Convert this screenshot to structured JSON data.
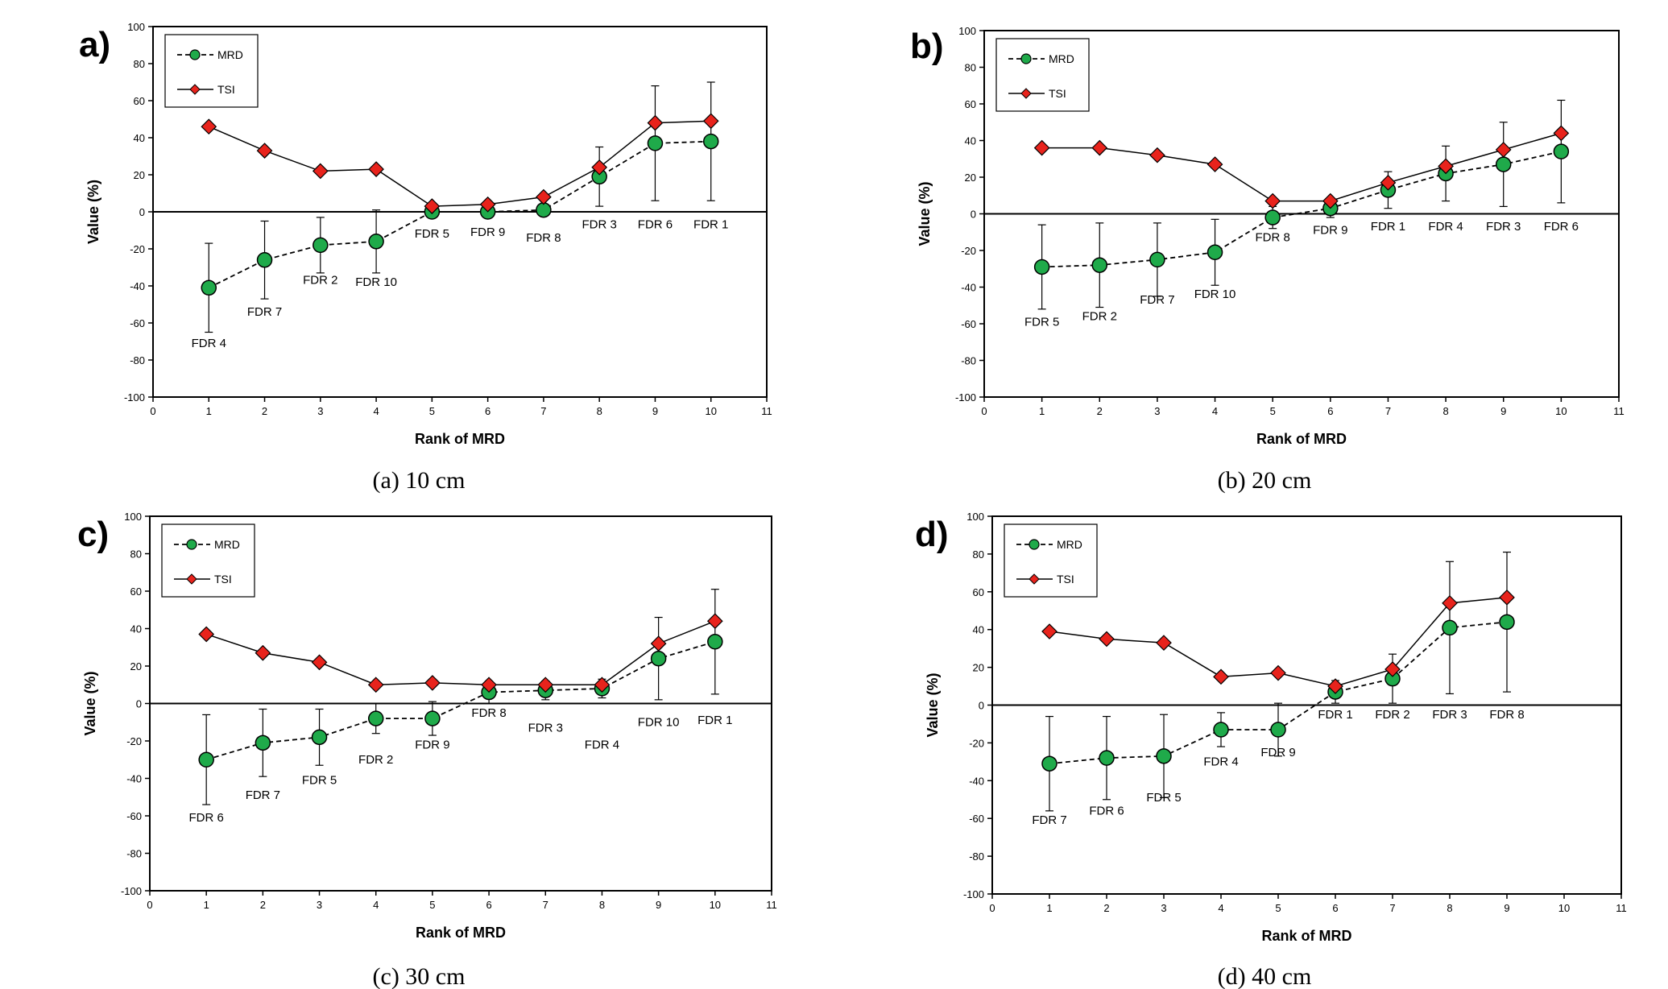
{
  "chart_data": [
    {
      "type": "line",
      "panel_label": "a)",
      "caption": "(a) 10 cm",
      "xlabel": "Rank of MRD",
      "ylabel": "Value (%)",
      "xlim": [
        0,
        11
      ],
      "ylim": [
        -100,
        100
      ],
      "xticks": [
        0,
        1,
        2,
        3,
        4,
        5,
        6,
        7,
        8,
        9,
        10,
        11
      ],
      "yticks": [
        -100,
        -80,
        -60,
        -40,
        -20,
        0,
        20,
        40,
        60,
        80,
        100
      ],
      "legend_placement": "top-left",
      "series": [
        {
          "name": "MRD",
          "style": "dashed",
          "marker": "circle",
          "color": "#1faa4a",
          "x": [
            1,
            2,
            3,
            4,
            5,
            6,
            7,
            8,
            9,
            10
          ],
          "y": [
            -41,
            -26,
            -18,
            -16,
            0,
            0,
            1,
            19,
            37,
            38
          ],
          "err": [
            24,
            21,
            15,
            17,
            0,
            0,
            2,
            16,
            31,
            32
          ]
        },
        {
          "name": "TSI",
          "style": "solid",
          "marker": "diamond",
          "color": "#e8231c",
          "x": [
            1,
            2,
            3,
            4,
            5,
            6,
            7,
            8,
            9,
            10
          ],
          "y": [
            46,
            33,
            22,
            23,
            3,
            4,
            8,
            24,
            48,
            49
          ]
        }
      ],
      "point_labels": [
        "FDR 4",
        "FDR 7",
        "FDR 2",
        "FDR 10",
        "FDR 5",
        "FDR 9",
        "FDR 8",
        "FDR 3",
        "FDR 6",
        "FDR 1"
      ],
      "point_label_y": [
        -73,
        -56,
        -39,
        -40,
        -14,
        -13,
        -16,
        -9,
        -9,
        -9
      ]
    },
    {
      "type": "line",
      "panel_label": "b)",
      "caption": "(b) 20 cm",
      "xlabel": "Rank of MRD",
      "ylabel": "Value (%)",
      "xlim": [
        0,
        11
      ],
      "ylim": [
        -100,
        100
      ],
      "xticks": [
        0,
        1,
        2,
        3,
        4,
        5,
        6,
        7,
        8,
        9,
        10,
        11
      ],
      "yticks": [
        -100,
        -80,
        -60,
        -40,
        -20,
        0,
        20,
        40,
        60,
        80,
        100
      ],
      "legend_placement": "top-left",
      "series": [
        {
          "name": "MRD",
          "style": "dashed",
          "marker": "circle",
          "color": "#1faa4a",
          "x": [
            1,
            2,
            3,
            4,
            5,
            6,
            7,
            8,
            9,
            10
          ],
          "y": [
            -29,
            -28,
            -25,
            -21,
            -2,
            3,
            13,
            22,
            27,
            34
          ],
          "err": [
            23,
            23,
            20,
            18,
            6,
            5,
            10,
            15,
            23,
            28
          ]
        },
        {
          "name": "TSI",
          "style": "solid",
          "marker": "diamond",
          "color": "#e8231c",
          "x": [
            1,
            2,
            3,
            4,
            5,
            6,
            7,
            8,
            9,
            10
          ],
          "y": [
            36,
            36,
            32,
            27,
            7,
            7,
            17,
            26,
            35,
            44
          ]
        }
      ],
      "point_labels": [
        "FDR 5",
        "FDR 2",
        "FDR 7",
        "FDR 10",
        "FDR 8",
        "FDR 9",
        "FDR 1",
        "FDR 4",
        "FDR 3",
        "FDR 6"
      ],
      "point_label_y": [
        -61,
        -58,
        -49,
        -46,
        -15,
        -11,
        -9,
        -9,
        -9,
        -9
      ]
    },
    {
      "type": "line",
      "panel_label": "c)",
      "caption": "(c) 30 cm",
      "xlabel": "Rank of MRD",
      "ylabel": "Value (%)",
      "xlim": [
        0,
        11
      ],
      "ylim": [
        -100,
        100
      ],
      "xticks": [
        0,
        1,
        2,
        3,
        4,
        5,
        6,
        7,
        8,
        9,
        10,
        11
      ],
      "yticks": [
        -100,
        -80,
        -60,
        -40,
        -20,
        0,
        20,
        40,
        60,
        80,
        100
      ],
      "legend_placement": "top-left",
      "series": [
        {
          "name": "MRD",
          "style": "dashed",
          "marker": "circle",
          "color": "#1faa4a",
          "x": [
            1,
            2,
            3,
            4,
            5,
            6,
            7,
            8,
            9,
            10
          ],
          "y": [
            -30,
            -21,
            -18,
            -8,
            -8,
            6,
            7,
            8,
            24,
            33
          ],
          "err": [
            24,
            18,
            15,
            8,
            9,
            6,
            5,
            5,
            22,
            28
          ]
        },
        {
          "name": "TSI",
          "style": "solid",
          "marker": "diamond",
          "color": "#e8231c",
          "x": [
            1,
            2,
            3,
            4,
            5,
            6,
            7,
            8,
            9,
            10
          ],
          "y": [
            37,
            27,
            22,
            10,
            11,
            10,
            10,
            10,
            32,
            44
          ]
        }
      ],
      "point_labels": [
        "FDR 6",
        "FDR 7",
        "FDR 5",
        "FDR 2",
        "FDR 9",
        "FDR 8",
        "FDR 3",
        "FDR 4",
        "FDR 10",
        "FDR 1"
      ],
      "point_label_y": [
        -63,
        -51,
        -43,
        -32,
        -24,
        -7,
        -15,
        -24,
        -12,
        -11
      ]
    },
    {
      "type": "line",
      "panel_label": "d)",
      "caption": "(d) 40 cm",
      "xlabel": "Rank of MRD",
      "ylabel": "Value (%)",
      "xlim": [
        0,
        11
      ],
      "ylim": [
        -100,
        100
      ],
      "xticks": [
        0,
        1,
        2,
        3,
        4,
        5,
        6,
        7,
        8,
        9,
        10,
        11
      ],
      "yticks": [
        -100,
        -80,
        -60,
        -40,
        -20,
        0,
        20,
        40,
        60,
        80,
        100
      ],
      "legend_placement": "top-left",
      "series": [
        {
          "name": "MRD",
          "style": "dashed",
          "marker": "circle",
          "color": "#1faa4a",
          "x": [
            1,
            2,
            3,
            4,
            5,
            6,
            7,
            8,
            9
          ],
          "y": [
            -31,
            -28,
            -27,
            -13,
            -13,
            7,
            14,
            41,
            44
          ],
          "err": [
            25,
            22,
            22,
            9,
            14,
            6,
            13,
            35,
            37
          ]
        },
        {
          "name": "TSI",
          "style": "solid",
          "marker": "diamond",
          "color": "#e8231c",
          "x": [
            1,
            2,
            3,
            4,
            5,
            6,
            7,
            8,
            9
          ],
          "y": [
            39,
            35,
            33,
            15,
            17,
            10,
            19,
            54,
            57
          ]
        }
      ],
      "point_labels": [
        "FDR 7",
        "FDR 6",
        "FDR 5",
        "FDR 4",
        "FDR 9",
        "FDR 1",
        "FDR 2",
        "FDR 3",
        "FDR 8"
      ],
      "point_label_y": [
        -63,
        -58,
        -51,
        -32,
        -27,
        -7,
        -7,
        -7,
        -7
      ]
    }
  ]
}
